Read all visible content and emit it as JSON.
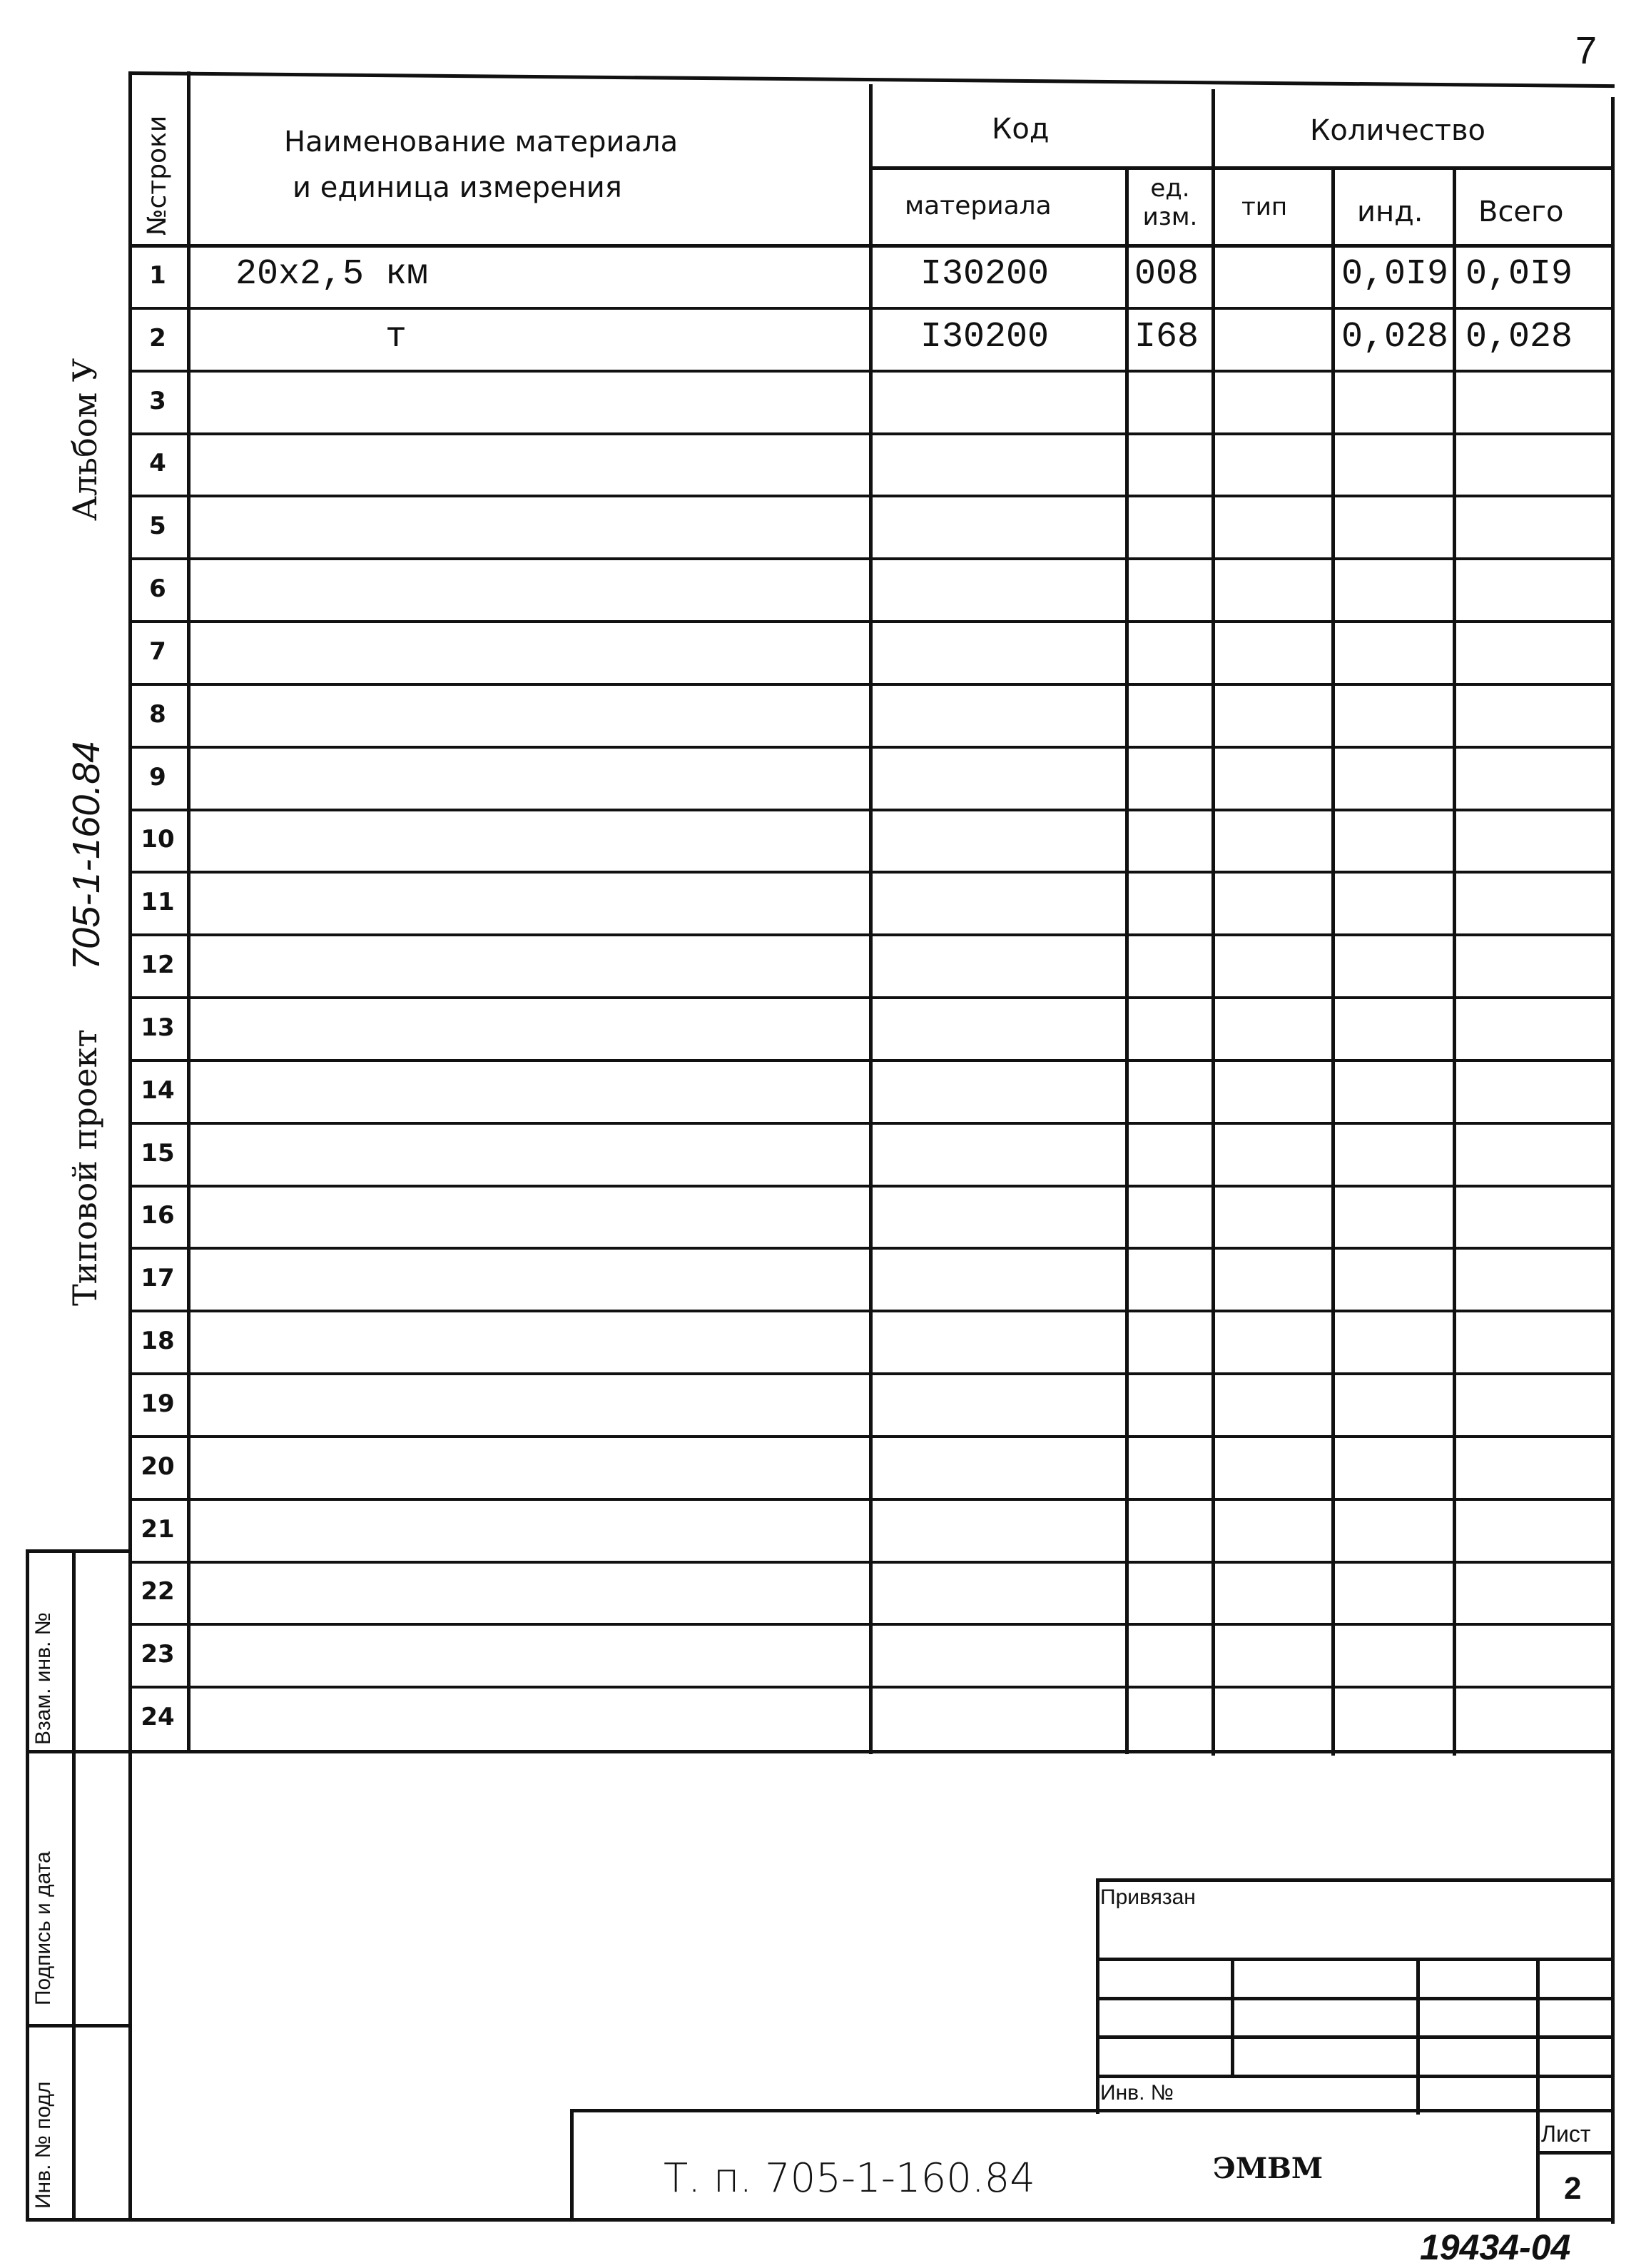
{
  "page_number": "7",
  "side_labels": {
    "album": "Альбом У",
    "project_code_handwritten": "705-1-160.84",
    "project": "Типовой проект"
  },
  "side_stamp": {
    "replace_inv": "Взам. инв. №",
    "signature_date": "Подпись и дата",
    "inv_orig": "Инв. № подл"
  },
  "table": {
    "headers": {
      "row_no": "№строки",
      "name": "Наименование материала",
      "name2": "и единица измерения",
      "code": "Код",
      "code_material": "материала",
      "code_unit": "ед. изм.",
      "quantity": "Количество",
      "qty_type": "тип",
      "qty_ind": "инд.",
      "qty_total": "Всего"
    },
    "rows": [
      {
        "no": "1",
        "name": "20х2,5 км",
        "material": "I30200",
        "unit": "008",
        "type": "",
        "ind": "0,0I9",
        "total": "0,0I9"
      },
      {
        "no": "2",
        "name": "т",
        "material": "I30200",
        "unit": "I68",
        "type": "",
        "ind": "0,028",
        "total": "0,028"
      },
      {
        "no": "3"
      },
      {
        "no": "4"
      },
      {
        "no": "5"
      },
      {
        "no": "6"
      },
      {
        "no": "7"
      },
      {
        "no": "8"
      },
      {
        "no": "9"
      },
      {
        "no": "10"
      },
      {
        "no": "11"
      },
      {
        "no": "12"
      },
      {
        "no": "13"
      },
      {
        "no": "14"
      },
      {
        "no": "15"
      },
      {
        "no": "16"
      },
      {
        "no": "17"
      },
      {
        "no": "18"
      },
      {
        "no": "19"
      },
      {
        "no": "20"
      },
      {
        "no": "21"
      },
      {
        "no": "22"
      },
      {
        "no": "23"
      },
      {
        "no": "24"
      }
    ]
  },
  "stamp": {
    "bound_label": "Привязан",
    "inv_label": "Инв. №",
    "doc_code": "Т. п. 705-1-160.84",
    "doc_title": "ЭМВМ",
    "sheet_label": "Лист",
    "sheet_number": "2"
  },
  "archive_number": "19434-04"
}
